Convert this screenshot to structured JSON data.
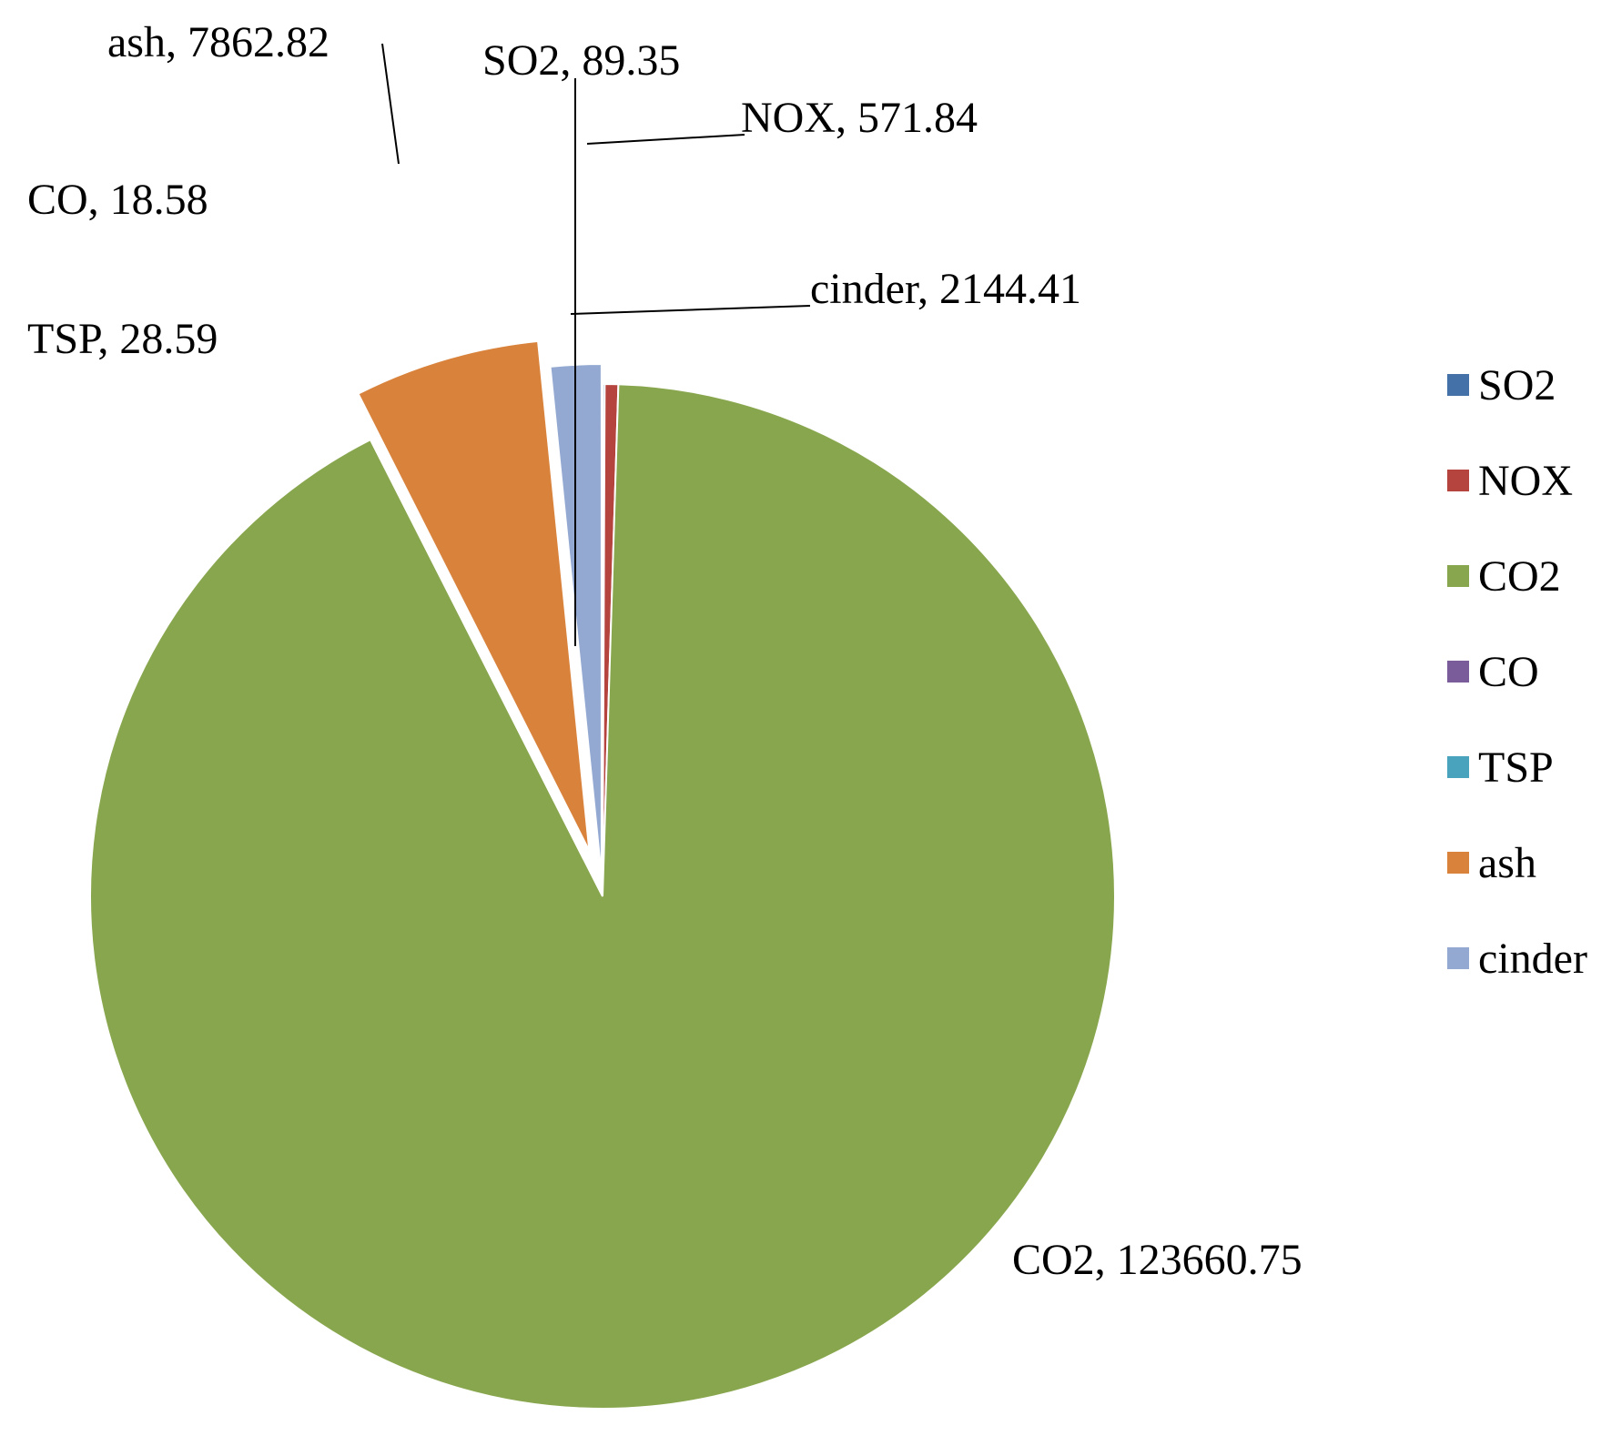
{
  "chart_data": {
    "type": "pie",
    "title": "",
    "legend_position": "right",
    "separator": ", ",
    "slices": [
      {
        "name": "SO2",
        "value": 89.35,
        "color": "#4472A8",
        "label_text": "89.35"
      },
      {
        "name": "NOX",
        "value": 571.84,
        "color": "#B5443F",
        "label_text": "571.84"
      },
      {
        "name": "CO2",
        "value": 123660.75,
        "color": "#88A64D",
        "label_text": "123660.75"
      },
      {
        "name": "CO",
        "value": 18.58,
        "color": "#7A5C9A",
        "label_text": "18.58"
      },
      {
        "name": "TSP",
        "value": 28.59,
        "color": "#4AA3BD",
        "label_text": "28.59"
      },
      {
        "name": "ash",
        "value": 7862.82,
        "color": "#D9823B",
        "label_text": "7862.82"
      },
      {
        "name": "cinder",
        "value": 2144.41,
        "color": "#93A9D2",
        "label_text": "2144.41"
      }
    ]
  }
}
